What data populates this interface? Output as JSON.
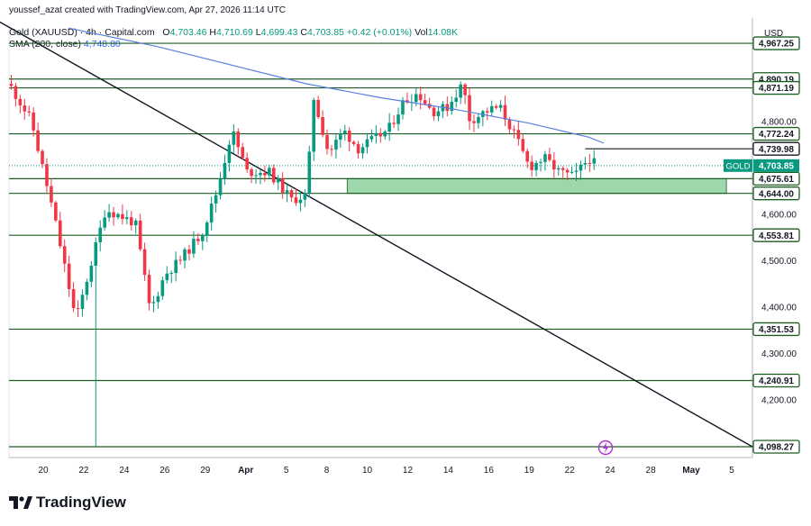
{
  "attribution": "youssef_azat created with TradingView.com, Apr 27, 2026 11:14 UTC",
  "legend": {
    "symbol": "Gold (XAUUSD) · 4h · Capital.com",
    "o_label": "O",
    "o": "4,703.46",
    "h_label": "H",
    "h": "4,710.69",
    "l_label": "L",
    "l": "4,699.43",
    "c_label": "C",
    "c": "4,703.85",
    "change": "+0.42 (+0.01%)",
    "vol_label": "Vol",
    "vol": "14.08K",
    "sma_label": "SMA (200, close)",
    "sma_value": "4,748.80"
  },
  "brand": "TradingView",
  "colors": {
    "up": "#089981",
    "down": "#f23645",
    "level": "#1b5e20",
    "sma": "#5b7fe0",
    "zone": "#8fd19e",
    "trend": "#131722"
  },
  "chart_data": {
    "type": "candlestick",
    "currency": "USD",
    "symbol_tag": "GOLD",
    "last_price": 4703.85,
    "y_range": [
      4075,
      5010
    ],
    "y_ticks": [
      4800,
      4600,
      4500,
      4400,
      4300,
      4200
    ],
    "x_ticks": [
      "20",
      "22",
      "24",
      "26",
      "29",
      "Apr",
      "5",
      "8",
      "10",
      "12",
      "14",
      "16",
      "19",
      "22",
      "24",
      "28",
      "May",
      "5"
    ],
    "levels": [
      {
        "value": 4967.25,
        "label": "4,967.25"
      },
      {
        "value": 4890.19,
        "label": "4,890.19"
      },
      {
        "value": 4871.19,
        "label": "4,871.19"
      },
      {
        "value": 4772.24,
        "label": "4,772.24"
      },
      {
        "value": 4739.98,
        "label": "4,739.98"
      },
      {
        "value": 4675.61,
        "label": "4,675.61"
      },
      {
        "value": 4644.0,
        "label": "4,644.00"
      },
      {
        "value": 4553.81,
        "label": "4,553.81"
      },
      {
        "value": 4351.53,
        "label": "4,351.53"
      },
      {
        "value": 4240.91,
        "label": "4,240.91"
      },
      {
        "value": 4098.27,
        "label": "4,098.27"
      }
    ],
    "zone": {
      "from": 4644.0,
      "to": 4675.61
    },
    "trendline": [
      [
        -0.02,
        5020
      ],
      [
        1.0,
        4098.27
      ]
    ],
    "sma200": [
      [
        0.08,
        5000
      ],
      [
        0.2,
        4960
      ],
      [
        0.3,
        4920
      ],
      [
        0.4,
        4880
      ],
      [
        0.5,
        4850
      ],
      [
        0.6,
        4825
      ],
      [
        0.7,
        4795
      ],
      [
        0.78,
        4765
      ],
      [
        0.8,
        4752
      ]
    ],
    "path": [
      [
        0.0,
        4880
      ],
      [
        0.03,
        4800
      ],
      [
        0.06,
        4600
      ],
      [
        0.09,
        4370
      ],
      [
        0.11,
        4490
      ],
      [
        0.13,
        4610
      ],
      [
        0.17,
        4580
      ],
      [
        0.19,
        4390
      ],
      [
        0.21,
        4470
      ],
      [
        0.23,
        4500
      ],
      [
        0.26,
        4560
      ],
      [
        0.28,
        4650
      ],
      [
        0.3,
        4780
      ],
      [
        0.32,
        4690
      ],
      [
        0.35,
        4690
      ],
      [
        0.38,
        4630
      ],
      [
        0.4,
        4640
      ],
      [
        0.41,
        4850
      ],
      [
        0.43,
        4730
      ],
      [
        0.45,
        4780
      ],
      [
        0.47,
        4740
      ],
      [
        0.49,
        4760
      ],
      [
        0.51,
        4780
      ],
      [
        0.53,
        4840
      ],
      [
        0.55,
        4860
      ],
      [
        0.57,
        4820
      ],
      [
        0.59,
        4830
      ],
      [
        0.61,
        4880
      ],
      [
        0.62,
        4800
      ],
      [
        0.64,
        4820
      ],
      [
        0.66,
        4830
      ],
      [
        0.68,
        4770
      ],
      [
        0.7,
        4700
      ],
      [
        0.72,
        4720
      ],
      [
        0.74,
        4690
      ],
      [
        0.76,
        4680
      ],
      [
        0.78,
        4720
      ],
      [
        0.79,
        4704
      ]
    ]
  }
}
